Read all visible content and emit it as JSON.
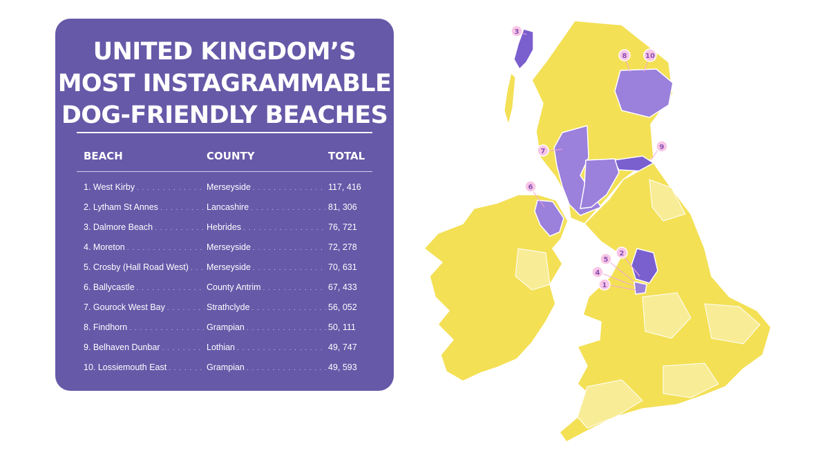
{
  "title": {
    "line1": "UNITED KINGDOM’S",
    "line2": "MOST INSTAGRAMMABLE",
    "line3": "DOG-FRIENDLY BEACHES"
  },
  "table": {
    "headers": {
      "beach": "BEACH",
      "county": "COUNTY",
      "total": "TOTAL"
    },
    "rows": [
      {
        "beach": "1. West Kirby",
        "county": "Merseyside",
        "total": "117, 416"
      },
      {
        "beach": "2. Lytham St Annes",
        "county": "Lancashire",
        "total": "81, 306"
      },
      {
        "beach": "3. Dalmore Beach",
        "county": "Hebrides",
        "total": "76, 721"
      },
      {
        "beach": "4. Moreton",
        "county": "Merseyside",
        "total": "72, 278"
      },
      {
        "beach": "5. Crosby (Hall Road West)",
        "county": "Merseyside",
        "total": "70, 631"
      },
      {
        "beach": "6. Ballycastle",
        "county": "County Antrim",
        "total": "67, 433"
      },
      {
        "beach": "7. Gourock West Bay",
        "county": "Strathclyde",
        "total": "56, 052"
      },
      {
        "beach": "8. Findhorn",
        "county": "Grampian",
        "total": "50, 111"
      },
      {
        "beach": "9. Belhaven Dunbar",
        "county": "Lothian",
        "total": "49, 747"
      },
      {
        "beach": "10. Lossiemouth East",
        "county": "Grampian",
        "total": "49, 593"
      }
    ]
  },
  "map": {
    "markers": [
      "1",
      "2",
      "3",
      "4",
      "5",
      "6",
      "7",
      "8",
      "9",
      "10"
    ]
  },
  "colors": {
    "card": "#6559a8",
    "highlight_region": "#9b80dc",
    "highlight_region_dark": "#7a5fcf",
    "region_yellow": "#f3e055",
    "region_light_yellow": "#f8ec97",
    "marker": "#f3a6d8"
  }
}
